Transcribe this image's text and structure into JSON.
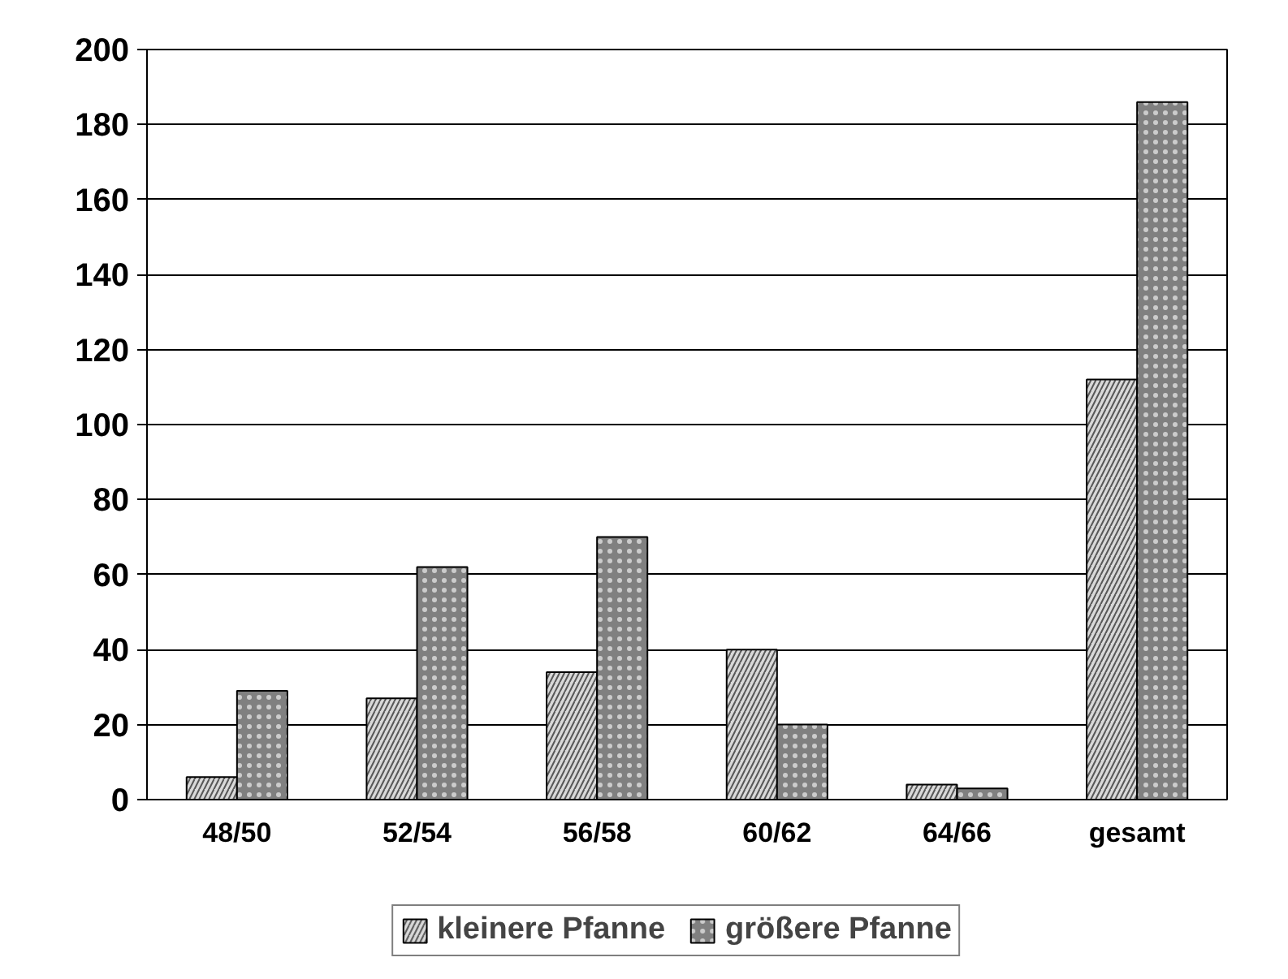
{
  "chart_data": {
    "type": "bar",
    "categories": [
      "48/50",
      "52/54",
      "56/58",
      "60/62",
      "64/66",
      "gesamt"
    ],
    "series": [
      {
        "name": "kleinere Pfanne",
        "color": "#d9d9d9",
        "values": [
          6,
          27,
          34,
          40,
          4,
          112
        ]
      },
      {
        "name": "größere Pfanne",
        "color": "#808080",
        "values": [
          29,
          62,
          70,
          20,
          3,
          186
        ]
      }
    ],
    "ylim": [
      0,
      200
    ],
    "yticks": [
      0,
      20,
      40,
      60,
      80,
      100,
      120,
      140,
      160,
      180,
      200
    ],
    "grid": "y",
    "legend": "bottom"
  }
}
